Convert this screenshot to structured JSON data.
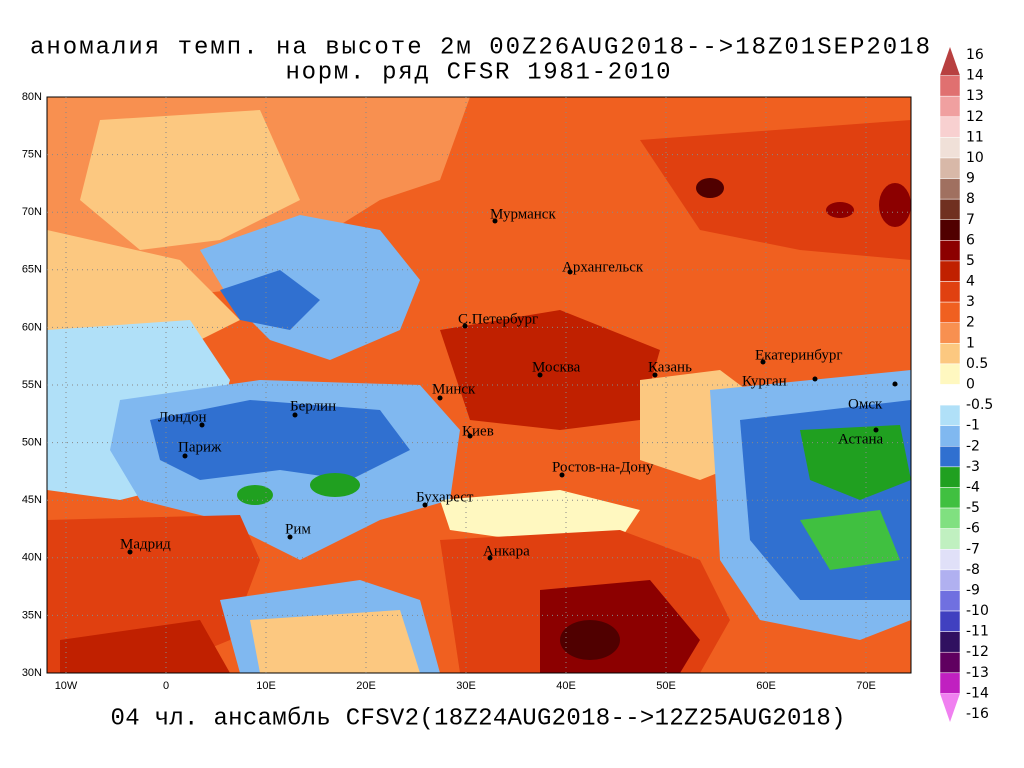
{
  "header": {
    "title": "аномалия темп. на высоте 2м 00Z26AUG2018-->18Z01SEP2018",
    "subtitle": "норм. ряд CFSR 1981-2010"
  },
  "footer": "04 чл. ансамбль CFSV2(18Z24AUG2018-->12Z25AUG2018)",
  "lat_labels": [
    "80N",
    "75N",
    "70N",
    "65N",
    "60N",
    "55N",
    "50N",
    "45N",
    "40N",
    "35N",
    "30N"
  ],
  "lon_labels": [
    "10W",
    "0",
    "10E",
    "20E",
    "30E",
    "40E",
    "50E",
    "60E",
    "70E"
  ],
  "cities": [
    "Мурманск",
    "Архангельск",
    "С.Петербург",
    "Москва",
    "Казань",
    "Екатеринбург",
    "Курган",
    "Омск",
    "Астана",
    "Минск",
    "Берлин",
    "Лондон",
    "Париж",
    "Киев",
    "Ростов-на-Дону",
    "Бухарест",
    "Рим",
    "Мадрид",
    "Анкара"
  ],
  "colorbar": {
    "levels": [
      16,
      14,
      13,
      12,
      11,
      10,
      9,
      8,
      7,
      6,
      5,
      4,
      3,
      2,
      1,
      0.5,
      0,
      -0.5,
      -1,
      -2,
      -3,
      -4,
      -5,
      -6,
      -7,
      -8,
      -9,
      -10,
      -11,
      -12,
      -13,
      -14,
      -16
    ],
    "colors": [
      "#b84040",
      "#e07070",
      "#f0a0a0",
      "#f8d0d0",
      "#f0e0d8",
      "#d8b8a8",
      "#a07060",
      "#703020",
      "#500000",
      "#8c0000",
      "#c02000",
      "#e04010",
      "#f06020",
      "#f89050",
      "#fcc880",
      "#fff8c0",
      "#ffffff",
      "#b0e0f8",
      "#80b8f0",
      "#3070d0",
      "#20a020",
      "#40c040",
      "#80e080",
      "#c0f0c0",
      "#e0e0f8",
      "#b0b0f0",
      "#7070e0",
      "#4040c0",
      "#301060",
      "#600060",
      "#c020c0",
      "#f080f0"
    ]
  }
}
